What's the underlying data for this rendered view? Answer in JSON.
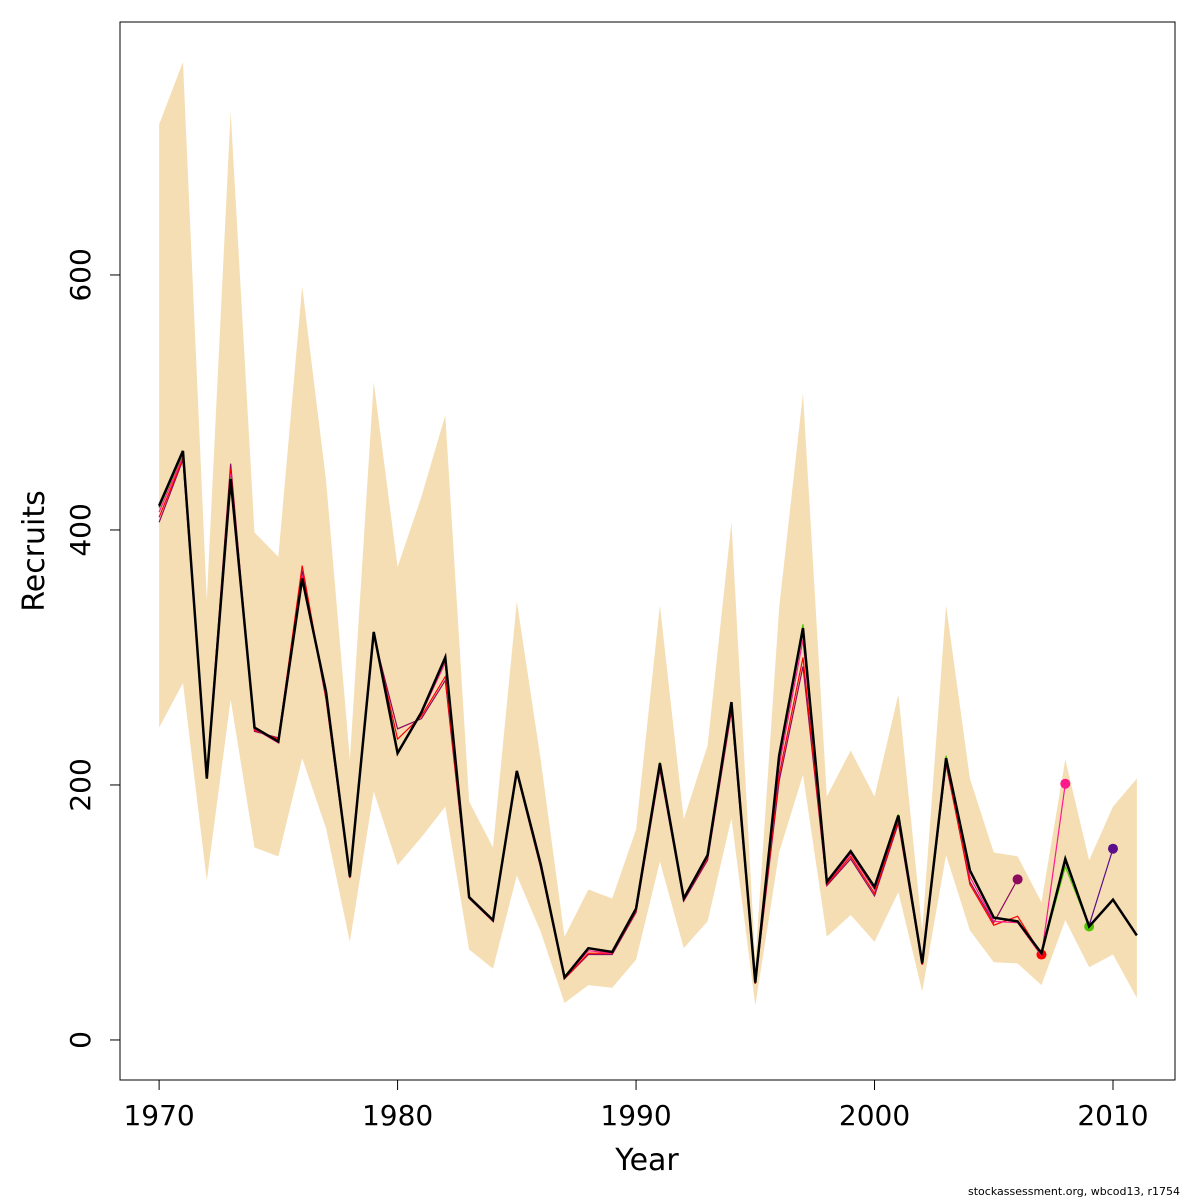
{
  "chart_data": {
    "type": "line",
    "x_label": "Year",
    "y_label": "Recruits",
    "footnote": "stockassessment.org, wbcod13, r1754",
    "x": [
      1970,
      1971,
      1972,
      1973,
      1974,
      1975,
      1976,
      1977,
      1978,
      1979,
      1980,
      1981,
      1982,
      1983,
      1984,
      1985,
      1986,
      1987,
      1988,
      1989,
      1990,
      1991,
      1992,
      1993,
      1994,
      1995,
      1996,
      1997,
      1998,
      1999,
      2000,
      2001,
      2002,
      2003,
      2004,
      2005,
      2006,
      2007,
      2008,
      2009,
      2010,
      2011
    ],
    "band": {
      "color": "#f5deb3",
      "upper": [
        718,
        767,
        345,
        728,
        398,
        379,
        591,
        439,
        220,
        516,
        371,
        426,
        490,
        187,
        151,
        344,
        220,
        81,
        118,
        111,
        165,
        341,
        173,
        231,
        406,
        61,
        339,
        507,
        191,
        227,
        191,
        271,
        86,
        341,
        205,
        147,
        144,
        108,
        220,
        141,
        183,
        205
      ],
      "lower": [
        245,
        280,
        125,
        267,
        151,
        144,
        221,
        166,
        77,
        195,
        137,
        159,
        183,
        71,
        56,
        129,
        85,
        29,
        43,
        41,
        63,
        140,
        72,
        93,
        174,
        27,
        147,
        208,
        81,
        98,
        77,
        116,
        38,
        145,
        86,
        61,
        60,
        43,
        94,
        57,
        67,
        33
      ]
    },
    "series": [
      {
        "color": "#000000",
        "values": [
          419,
          462,
          205,
          440,
          245,
          234,
          362,
          273,
          128,
          320,
          225,
          257,
          300,
          112,
          94,
          211,
          138,
          49,
          72,
          69,
          103,
          217,
          111,
          145,
          265,
          45,
          223,
          323,
          124,
          148,
          120,
          176,
          60,
          221,
          133,
          96,
          93,
          68,
          142,
          89,
          110,
          82
        ]
      },
      {
        "color": "#5b0f8c",
        "values": [
          418,
          461,
          205,
          440,
          245,
          234,
          361,
          272,
          128,
          320,
          225,
          257,
          299,
          112,
          94,
          211,
          138,
          49,
          72,
          69,
          103,
          217,
          111,
          145,
          265,
          45,
          223,
          323,
          124,
          148,
          120,
          176,
          60,
          221,
          133,
          96,
          93,
          68,
          140,
          90,
          150,
          null
        ]
      },
      {
        "color": "#4fc400",
        "values": [
          417,
          460,
          205,
          441,
          245,
          234,
          362,
          272,
          128,
          320,
          225,
          257,
          299,
          112,
          94,
          211,
          138,
          49,
          72,
          69,
          103,
          218,
          111,
          145,
          264,
          45,
          224,
          326,
          124,
          148,
          120,
          177,
          60,
          223,
          133,
          96,
          93,
          68,
          136,
          89,
          null,
          null
        ]
      },
      {
        "color": "#ff1a8c",
        "values": [
          414,
          458,
          206,
          444,
          244,
          233,
          364,
          270,
          128,
          319,
          226,
          256,
          296,
          112,
          93,
          210,
          137,
          49,
          70,
          68,
          102,
          216,
          110,
          144,
          262,
          45,
          215,
          314,
          123,
          146,
          118,
          175,
          60,
          220,
          128,
          93,
          92,
          66,
          201,
          null,
          null,
          null
        ]
      },
      {
        "color": "#ff0000",
        "values": [
          410,
          456,
          206,
          448,
          243,
          236,
          372,
          268,
          127,
          318,
          236,
          254,
          285,
          112,
          93,
          210,
          136,
          48,
          68,
          68,
          101,
          214,
          110,
          143,
          260,
          44,
          208,
          300,
          122,
          144,
          115,
          172,
          59,
          218,
          122,
          90,
          97,
          67,
          null,
          null,
          null,
          null
        ]
      },
      {
        "color": "#8e0a5e",
        "values": [
          406,
          455,
          207,
          452,
          242,
          237,
          368,
          267,
          127,
          317,
          244,
          252,
          282,
          111,
          93,
          209,
          135,
          48,
          67,
          67,
          100,
          212,
          109,
          141,
          258,
          44,
          203,
          293,
          121,
          142,
          113,
          170,
          59,
          216,
          124,
          92,
          126,
          null,
          null,
          null,
          null,
          null
        ]
      }
    ],
    "xlim": [
      1968.36,
      2012.6
    ],
    "ylim": [
      -31.4,
      798.4
    ],
    "xticks": [
      1970,
      1980,
      1990,
      2000,
      2010
    ],
    "yticks": [
      0,
      200,
      400,
      600
    ]
  }
}
